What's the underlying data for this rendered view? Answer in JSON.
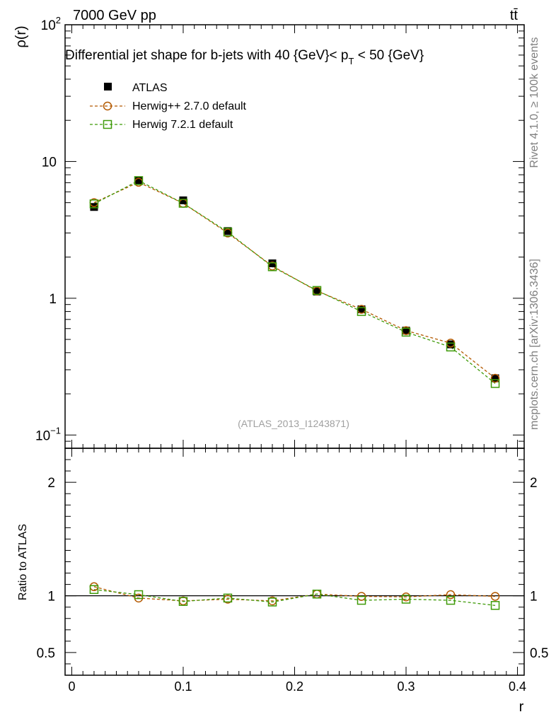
{
  "header": {
    "left": "7000 GeV pp",
    "right": "tt̄"
  },
  "side_labels": {
    "rivet": "Rivet 4.1.0, ≥ 100k events",
    "mcplots": "mcplots.cern.ch [arXiv:1306.3436]"
  },
  "chart_data": {
    "type": "line",
    "title": "Differential jet shape for b-jets with 40 {GeV}< p_T < 50 {GeV}",
    "title_parts": {
      "main": "Differential jet shape for b-jets with 40 {GeV}< p",
      "sub": "T",
      "tail": " < 50 {GeV}"
    },
    "analysis_id": "(ATLAS_2013_I1243871)",
    "xlabel": "r",
    "ylabel": "ρ(r)",
    "ratio_ylabel": "Ratio to ATLAS",
    "xlim": [
      -0.006,
      0.406
    ],
    "ylim_log": [
      0.08,
      100
    ],
    "ratio_ylim": [
      0.3,
      2.3
    ],
    "x_ticks": [
      {
        "value": 0.0,
        "label": "0"
      },
      {
        "value": 0.1,
        "label": "0.1"
      },
      {
        "value": 0.2,
        "label": "0.2"
      },
      {
        "value": 0.3,
        "label": "0.3"
      },
      {
        "value": 0.4,
        "label": "0.4"
      }
    ],
    "y_ticks": [
      {
        "value": 0.1,
        "base": "10",
        "exp": "−1"
      },
      {
        "value": 1,
        "base": "1",
        "exp": ""
      },
      {
        "value": 10,
        "base": "10",
        "exp": ""
      },
      {
        "value": 100,
        "base": "10",
        "exp": "2"
      }
    ],
    "ratio_ticks": [
      {
        "value": 0.5,
        "label": "0.5"
      },
      {
        "value": 1,
        "label": "1"
      },
      {
        "value": 2,
        "label": "2"
      }
    ],
    "x": [
      0.02,
      0.06,
      0.1,
      0.14,
      0.18,
      0.22,
      0.26,
      0.3,
      0.34,
      0.38
    ],
    "data": {
      "name": "ATLAS",
      "color": "#000000",
      "values": [
        4.65,
        7.2,
        5.2,
        3.1,
        1.8,
        1.12,
        0.83,
        0.58,
        0.46,
        0.26
      ],
      "errors": [
        0.2,
        0.15,
        0.12,
        0.07,
        0.04,
        0.02,
        0.015,
        0.012,
        0.01,
        0.008
      ]
    },
    "series": [
      {
        "name": "Herwig++ 2.7.0 default",
        "marker": "circle",
        "color": "#b35900",
        "values": [
          5.0,
          7.05,
          4.95,
          3.0,
          1.72,
          1.13,
          0.83,
          0.58,
          0.47,
          0.26
        ],
        "ratio": [
          1.08,
          0.98,
          0.955,
          0.97,
          0.955,
          1.015,
          0.995,
          0.99,
          1.01,
          0.995
        ]
      },
      {
        "name": "Herwig 7.2.1 default",
        "marker": "square",
        "color": "#3e9a08",
        "values": [
          4.9,
          7.25,
          4.95,
          3.05,
          1.7,
          1.14,
          0.8,
          0.565,
          0.44,
          0.238
        ],
        "ratio": [
          1.055,
          1.01,
          0.95,
          0.98,
          0.945,
          1.015,
          0.96,
          0.97,
          0.96,
          0.915
        ]
      }
    ]
  }
}
